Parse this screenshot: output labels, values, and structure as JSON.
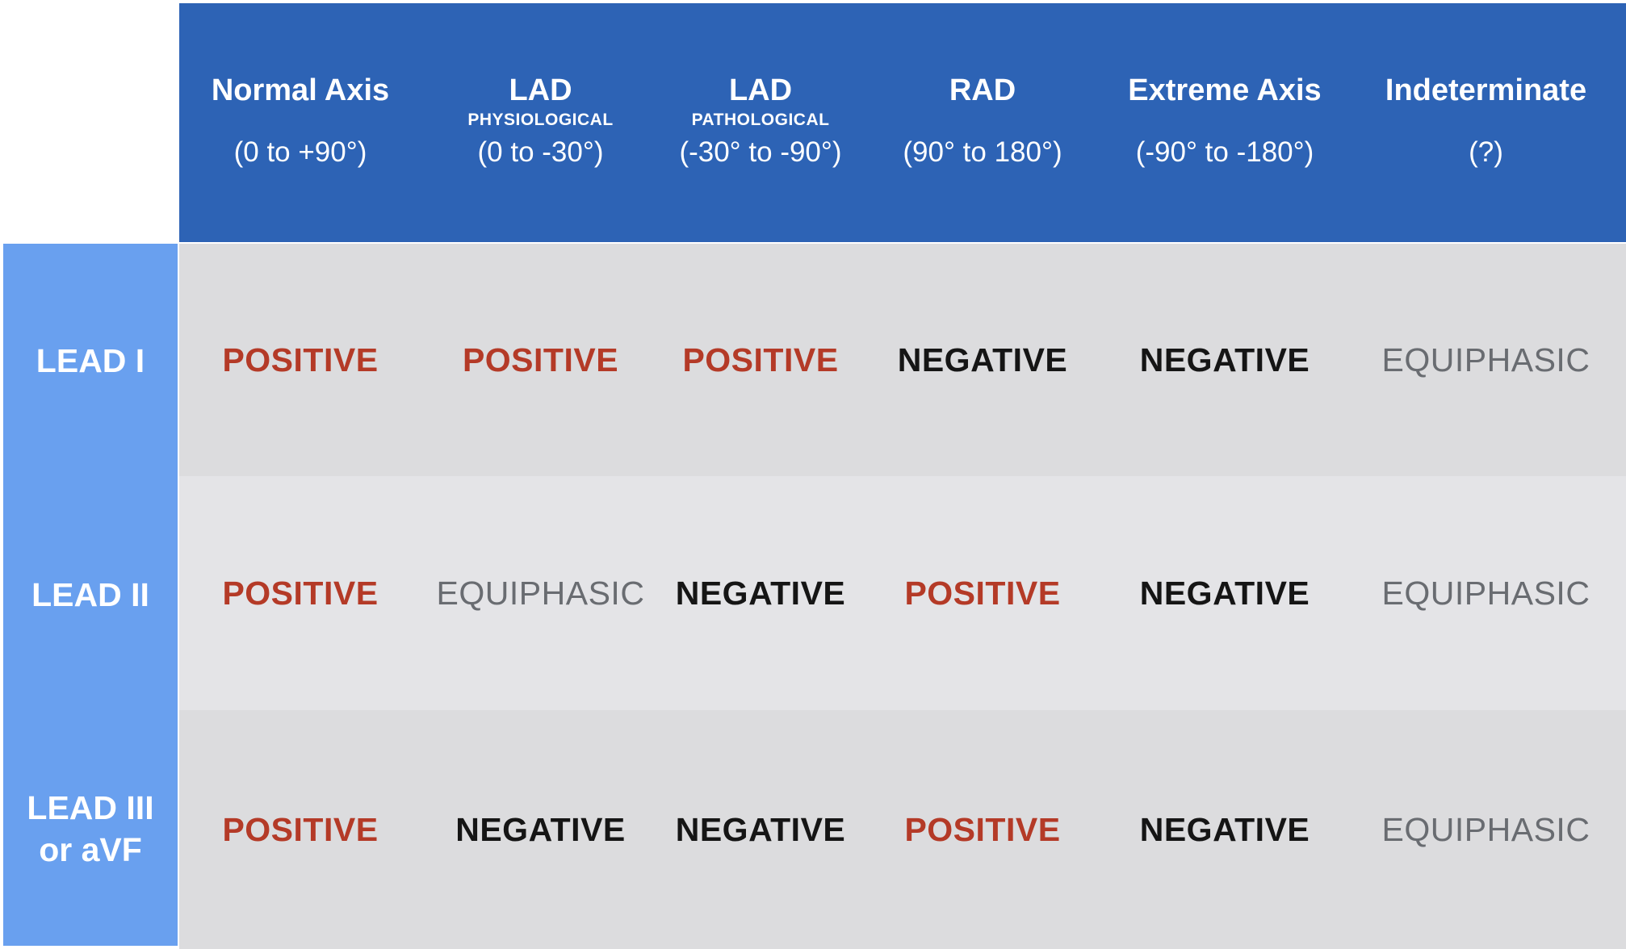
{
  "chart_data": {
    "type": "table",
    "columns": [
      {
        "title": "Normal Axis",
        "subtitle": "",
        "range": "(0 to +90°)"
      },
      {
        "title": "LAD",
        "subtitle": "PHYSIOLOGICAL",
        "range": "(0 to -30°)"
      },
      {
        "title": "LAD",
        "subtitle": "PATHOLOGICAL",
        "range": "(-30° to -90°)"
      },
      {
        "title": "RAD",
        "subtitle": "",
        "range": "(90° to 180°)"
      },
      {
        "title": "Extreme Axis",
        "subtitle": "",
        "range": "(-90° to -180°)"
      },
      {
        "title": "Indeterminate",
        "subtitle": "",
        "range": "(?)"
      }
    ],
    "rows": [
      {
        "label": "LEAD I",
        "label_line2": "",
        "cells": [
          {
            "value": "POSITIVE",
            "type": "positive"
          },
          {
            "value": "POSITIVE",
            "type": "positive"
          },
          {
            "value": "POSITIVE",
            "type": "positive"
          },
          {
            "value": "NEGATIVE",
            "type": "negative"
          },
          {
            "value": "NEGATIVE",
            "type": "negative"
          },
          {
            "value": "EQUIPHASIC",
            "type": "equiphasic"
          }
        ]
      },
      {
        "label": "LEAD II",
        "label_line2": "",
        "cells": [
          {
            "value": "POSITIVE",
            "type": "positive"
          },
          {
            "value": "EQUIPHASIC",
            "type": "equiphasic"
          },
          {
            "value": "NEGATIVE",
            "type": "negative"
          },
          {
            "value": "POSITIVE",
            "type": "positive"
          },
          {
            "value": "NEGATIVE",
            "type": "negative"
          },
          {
            "value": "EQUIPHASIC",
            "type": "equiphasic"
          }
        ]
      },
      {
        "label": "LEAD III",
        "label_line2": "or aVF",
        "cells": [
          {
            "value": "POSITIVE",
            "type": "positive"
          },
          {
            "value": "NEGATIVE",
            "type": "negative"
          },
          {
            "value": "NEGATIVE",
            "type": "negative"
          },
          {
            "value": "POSITIVE",
            "type": "positive"
          },
          {
            "value": "NEGATIVE",
            "type": "negative"
          },
          {
            "value": "EQUIPHASIC",
            "type": "equiphasic"
          }
        ]
      }
    ]
  },
  "colors": {
    "header_bg": "#2d63b5",
    "header_text": "#ffffff",
    "row_label_bg": "#69a0ef",
    "row_label_text": "#ffffff",
    "row_bg": "#dcdcde",
    "row_bg_alt": "#e4e4e7",
    "positive_text": "#b43a27",
    "negative_text": "#151515",
    "equiphasic_text": "#696c71"
  }
}
